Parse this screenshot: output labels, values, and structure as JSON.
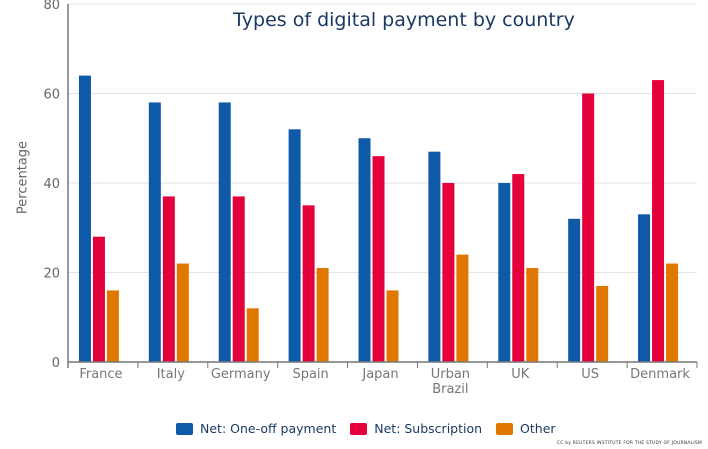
{
  "chart_data": {
    "type": "bar",
    "title": "Types of digital payment by country",
    "xlabel": "",
    "ylabel": "Percentage",
    "ylim": [
      0,
      80
    ],
    "yticks": [
      0,
      20,
      40,
      60,
      80
    ],
    "grid": true,
    "legend_position": "bottom",
    "categories": [
      "France",
      "Italy",
      "Germany",
      "Spain",
      "Japan",
      "Urban Brazil",
      "UK",
      "US",
      "Denmark"
    ],
    "series": [
      {
        "name": "Net: One-off payment",
        "color": "#0f5aa8",
        "values": [
          64,
          58,
          58,
          52,
          50,
          47,
          40,
          32,
          33
        ]
      },
      {
        "name": "Net: Subscription",
        "color": "#e4003b",
        "values": [
          28,
          37,
          37,
          35,
          46,
          40,
          42,
          60,
          63
        ]
      },
      {
        "name": "Other",
        "color": "#e07800",
        "values": [
          16,
          22,
          12,
          21,
          16,
          24,
          21,
          17,
          22
        ]
      }
    ],
    "credit": "CC by REUTERS INSTITUTE FOR THE STUDY OF JOURNALISM"
  }
}
